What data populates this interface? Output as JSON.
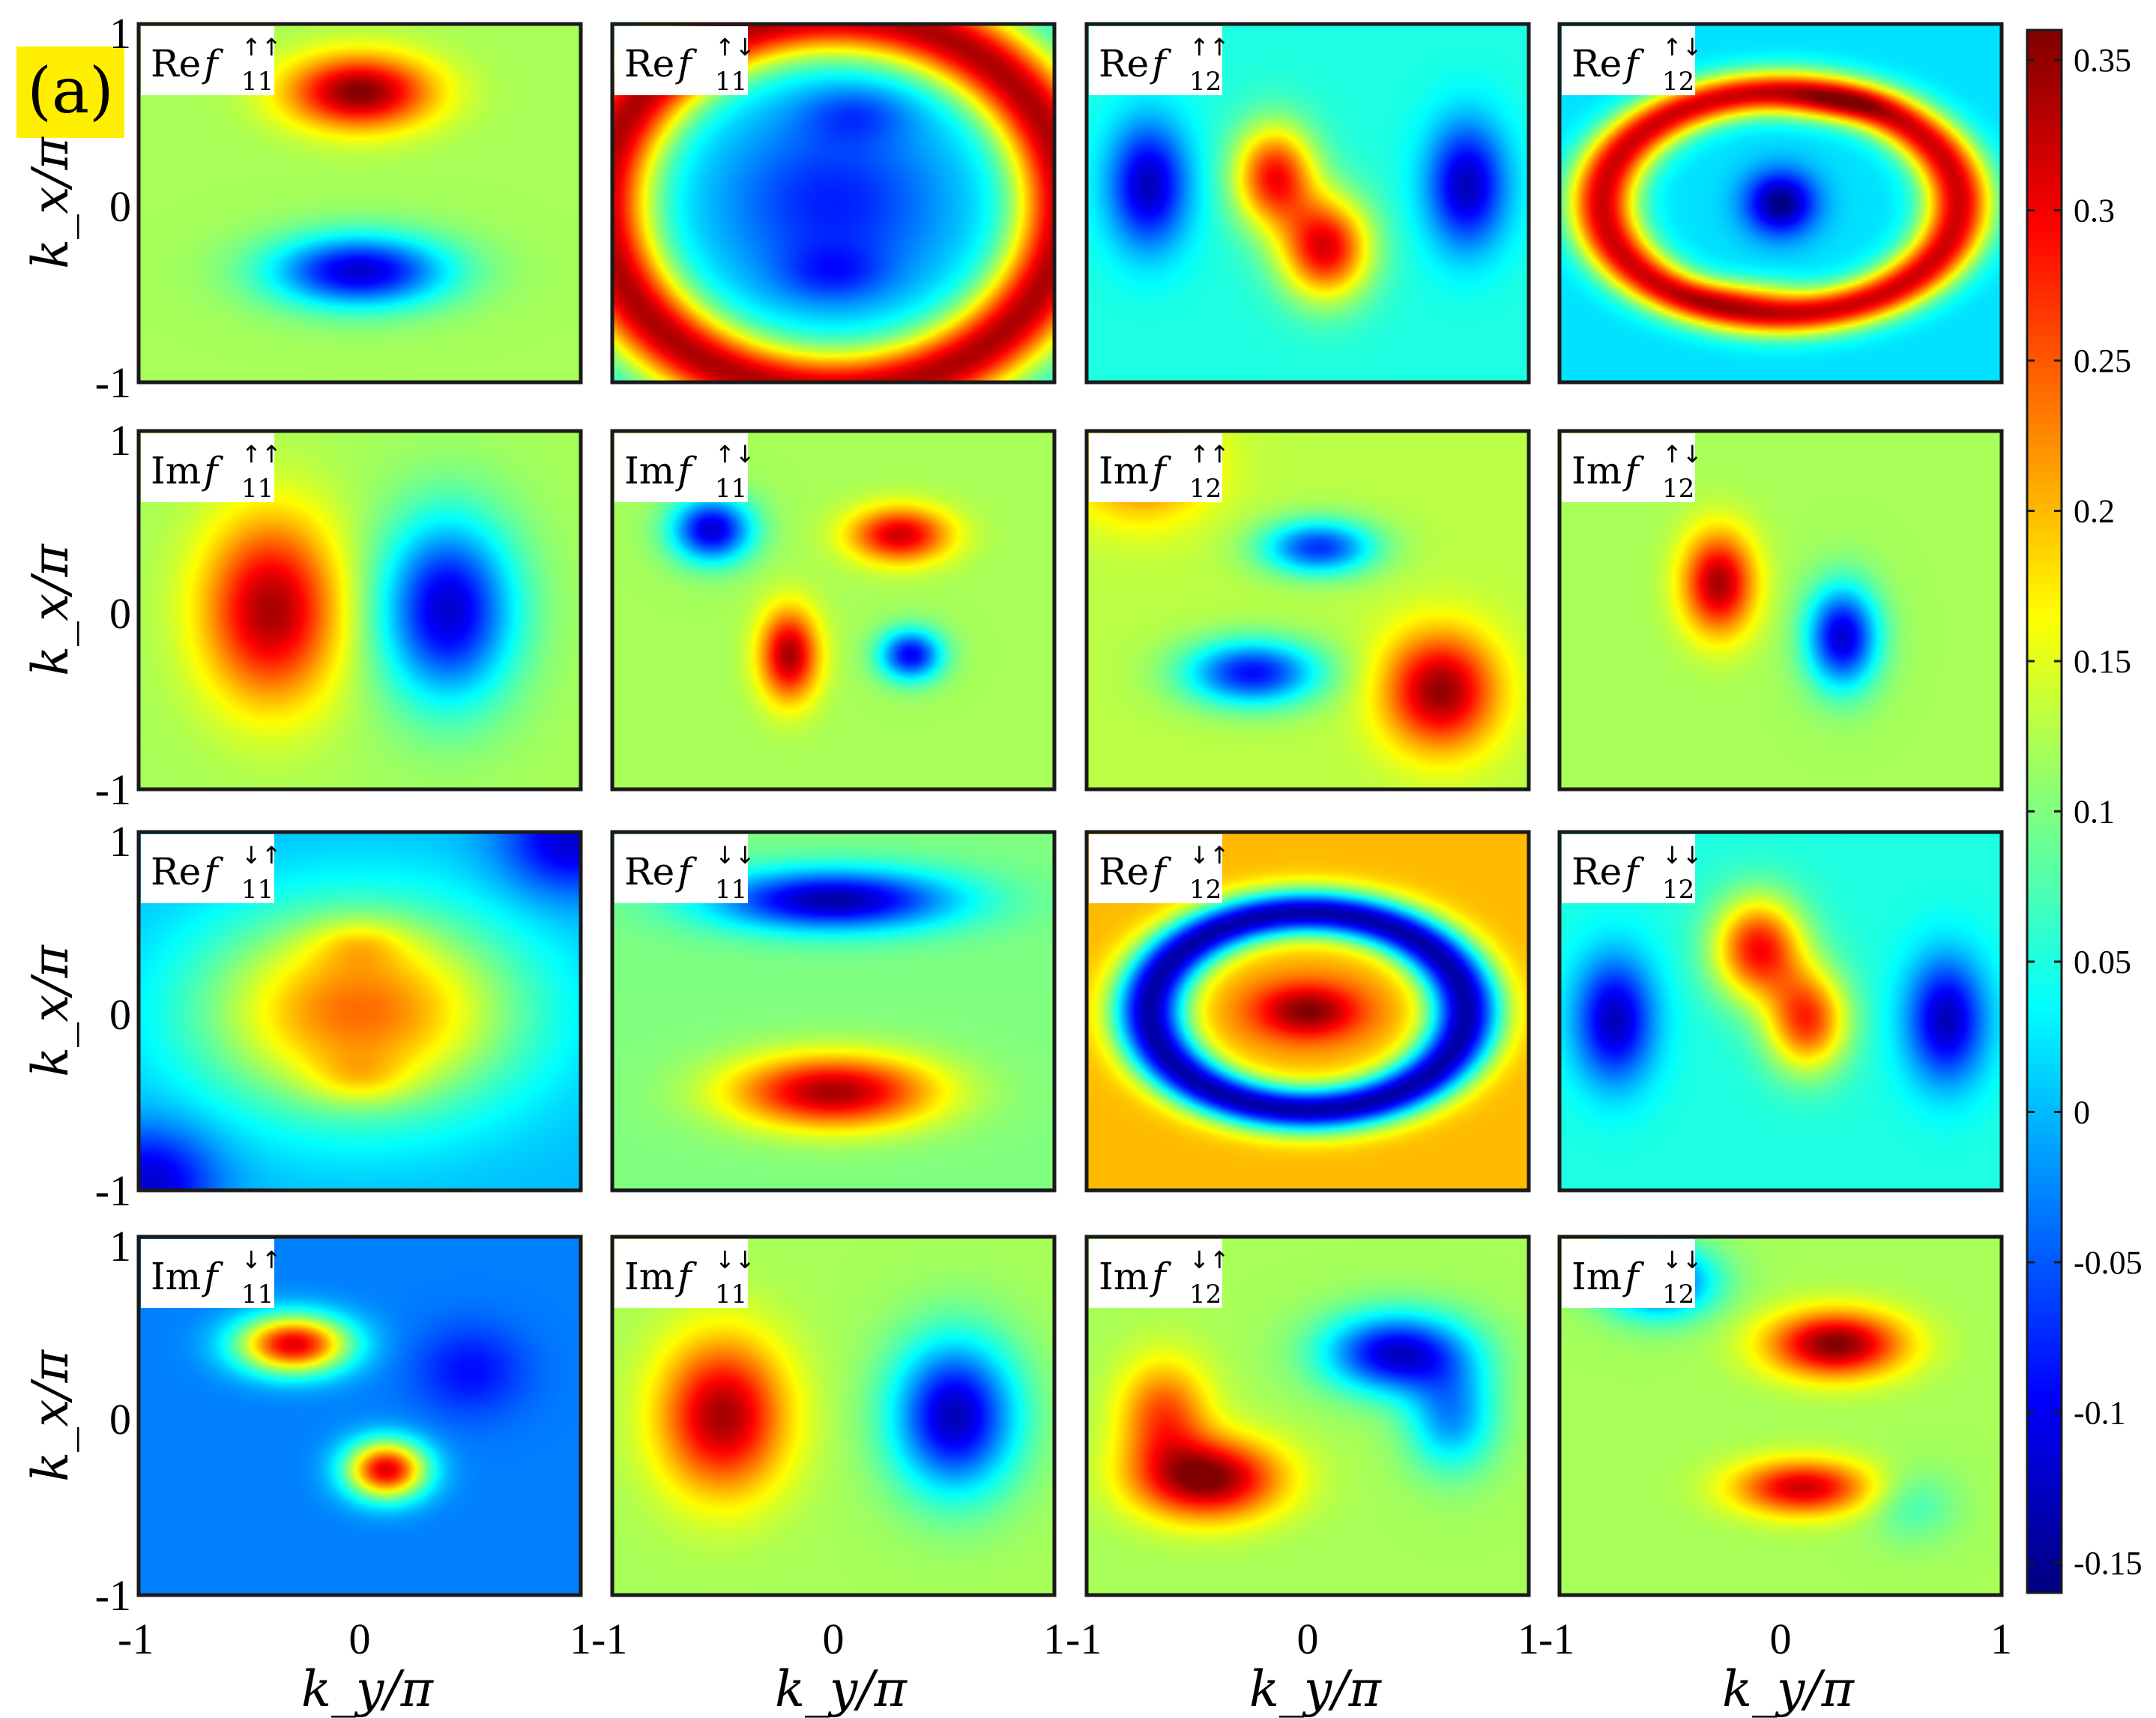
{
  "figure_label": "(a)",
  "label_bg_color": "#ffee00",
  "chart_data": {
    "type": "heatmap",
    "layout": {
      "rows": 4,
      "cols": 4
    },
    "xlabel": "k_y/π",
    "ylabel": "k_x/π",
    "xlim": [
      -1,
      1
    ],
    "ylim": [
      -1,
      1
    ],
    "x_tick_labels": [
      "-1",
      "0",
      "1"
    ],
    "y_tick_labels": [
      "1",
      "0",
      "-1"
    ],
    "colorbar": {
      "range": [
        -0.16,
        0.36
      ],
      "ticks": [
        0.35,
        0.3,
        0.25,
        0.2,
        0.15,
        0.1,
        0.05,
        0,
        -0.05,
        -0.1,
        -0.15
      ],
      "tick_labels": [
        "0.35",
        "0.3",
        "0.25",
        "0.2",
        "0.15",
        "0.1",
        "0.05",
        "0",
        "-0.05",
        "-0.1",
        "-0.15"
      ],
      "colormap": "jet"
    },
    "background_value": 0.1,
    "panels": [
      {
        "name": "Ref11uu",
        "part": "Re",
        "sub": "11",
        "sup": "↑↑",
        "bg": 0.12,
        "blobs": [
          {
            "y": 0.62,
            "x": 0.0,
            "sy": 0.2,
            "sx": 0.32,
            "a": 0.24
          },
          {
            "y": -0.38,
            "x": 0.0,
            "sy": 0.2,
            "sx": 0.4,
            "a": -0.24
          }
        ]
      },
      {
        "name": "Ref11ud",
        "part": "Re",
        "sub": "11",
        "sup": "↑↓",
        "bg": 0.04,
        "rings": [
          {
            "r": 1.05,
            "w": 0.22,
            "a": 0.3,
            "ex": 1.0
          }
        ],
        "blobs": [
          {
            "y": 0.0,
            "x": 0.0,
            "sy": 0.55,
            "sx": 0.55,
            "a": -0.12
          },
          {
            "y": 0.5,
            "x": 0.1,
            "sy": 0.16,
            "sx": 0.25,
            "a": -0.06
          },
          {
            "y": -0.4,
            "x": 0.0,
            "sy": 0.16,
            "sx": 0.25,
            "a": -0.06
          }
        ]
      },
      {
        "name": "Ref12uu",
        "part": "Re",
        "sub": "12",
        "sup": "↑↑",
        "bg": 0.05,
        "blobs": [
          {
            "y": 0.15,
            "x": -0.15,
            "sy": 0.28,
            "sx": 0.18,
            "a": 0.24
          },
          {
            "y": -0.25,
            "x": 0.08,
            "sy": 0.28,
            "sx": 0.2,
            "a": 0.26
          },
          {
            "y": 0.1,
            "x": -0.72,
            "sy": 0.35,
            "sx": 0.18,
            "a": -0.18
          },
          {
            "y": 0.1,
            "x": 0.72,
            "sy": 0.35,
            "sx": 0.18,
            "a": -0.18
          }
        ]
      },
      {
        "name": "Ref12ud",
        "part": "Re",
        "sub": "12",
        "sup": "↑↓",
        "bg": 0.02,
        "rings": [
          {
            "r": 0.62,
            "w": 0.12,
            "a": 0.3,
            "ex": 1.3
          }
        ],
        "blobs": [
          {
            "y": 0.0,
            "x": 0.0,
            "sy": 0.18,
            "sx": 0.16,
            "a": -0.18
          },
          {
            "y": 0.55,
            "x": 0.25,
            "sy": 0.1,
            "sx": 0.25,
            "a": 0.06
          },
          {
            "y": -0.5,
            "x": -0.15,
            "sy": 0.1,
            "sx": 0.25,
            "a": 0.06
          }
        ]
      },
      {
        "name": "Imf11uu",
        "part": "Im",
        "sub": "11",
        "sup": "↑↑",
        "bg": 0.12,
        "blobs": [
          {
            "y": 0.0,
            "x": -0.4,
            "sy": 0.5,
            "sx": 0.3,
            "a": 0.22
          },
          {
            "y": 0.0,
            "x": 0.4,
            "sy": 0.5,
            "sx": 0.3,
            "a": -0.24
          }
        ]
      },
      {
        "name": "Imf11ud",
        "part": "Im",
        "sub": "11",
        "sup": "↑↓",
        "bg": 0.12,
        "blobs": [
          {
            "y": 0.45,
            "x": -0.55,
            "sy": 0.18,
            "sx": 0.18,
            "a": -0.24
          },
          {
            "y": 0.42,
            "x": 0.3,
            "sy": 0.15,
            "sx": 0.22,
            "a": 0.2
          },
          {
            "y": -0.25,
            "x": -0.2,
            "sy": 0.25,
            "sx": 0.13,
            "a": 0.22
          },
          {
            "y": -0.25,
            "x": 0.35,
            "sy": 0.14,
            "sx": 0.14,
            "a": -0.22
          }
        ]
      },
      {
        "name": "Imf12uu",
        "part": "Im",
        "sub": "12",
        "sup": "↑↑",
        "bg": 0.13,
        "blobs": [
          {
            "y": 0.8,
            "x": -0.75,
            "sy": 0.3,
            "sx": 0.3,
            "a": 0.12
          },
          {
            "y": 0.35,
            "x": 0.05,
            "sy": 0.15,
            "sx": 0.25,
            "a": -0.2
          },
          {
            "y": -0.35,
            "x": -0.25,
            "sy": 0.18,
            "sx": 0.3,
            "a": -0.22
          },
          {
            "y": -0.45,
            "x": 0.6,
            "sy": 0.32,
            "sx": 0.25,
            "a": 0.22
          }
        ]
      },
      {
        "name": "Imf12ud",
        "part": "Im",
        "sub": "12",
        "sup": "↑↓",
        "bg": 0.12,
        "blobs": [
          {
            "y": 0.15,
            "x": -0.28,
            "sy": 0.28,
            "sx": 0.16,
            "a": 0.22
          },
          {
            "y": -0.15,
            "x": 0.28,
            "sy": 0.28,
            "sx": 0.16,
            "a": -0.24
          }
        ]
      },
      {
        "name": "Ref11du",
        "part": "Re",
        "sub": "11",
        "sup": "↓↑",
        "bg": 0.0,
        "blobs": [
          {
            "y": 0.0,
            "x": 0.0,
            "sy": 0.55,
            "sx": 0.7,
            "a": 0.24
          },
          {
            "y": 0.38,
            "x": 0.0,
            "sy": 0.14,
            "sx": 0.22,
            "a": 0.05
          },
          {
            "y": -0.38,
            "x": 0.0,
            "sy": 0.14,
            "sx": 0.22,
            "a": 0.05
          },
          {
            "y": -0.95,
            "x": -0.95,
            "sy": 0.3,
            "sx": 0.3,
            "a": -0.12
          },
          {
            "y": 0.95,
            "x": 0.95,
            "sy": 0.3,
            "sx": 0.3,
            "a": -0.12
          }
        ]
      },
      {
        "name": "Ref11dd",
        "part": "Re",
        "sub": "11",
        "sup": "↓↓",
        "bg": 0.1,
        "blobs": [
          {
            "y": 0.62,
            "x": 0.0,
            "sy": 0.17,
            "sx": 0.55,
            "a": -0.24
          },
          {
            "y": -0.45,
            "x": 0.0,
            "sy": 0.2,
            "sx": 0.45,
            "a": 0.24
          }
        ]
      },
      {
        "name": "Ref12du",
        "part": "Re",
        "sub": "12",
        "sup": "↓↑",
        "bg": 0.2,
        "rings": [
          {
            "r": 0.55,
            "w": 0.13,
            "a": -0.34,
            "ex": 1.3
          }
        ],
        "blobs": [
          {
            "y": 0.0,
            "x": 0.0,
            "sy": 0.16,
            "sx": 0.25,
            "a": 0.16
          }
        ]
      },
      {
        "name": "Ref12dd",
        "part": "Re",
        "sub": "12",
        "sup": "↓↓",
        "bg": 0.05,
        "blobs": [
          {
            "y": 0.35,
            "x": -0.1,
            "sy": 0.28,
            "sx": 0.2,
            "a": 0.24
          },
          {
            "y": -0.05,
            "x": 0.12,
            "sy": 0.28,
            "sx": 0.18,
            "a": 0.22
          },
          {
            "y": -0.05,
            "x": -0.75,
            "sy": 0.35,
            "sx": 0.18,
            "a": -0.18
          },
          {
            "y": -0.05,
            "x": 0.75,
            "sy": 0.35,
            "sx": 0.18,
            "a": -0.18
          }
        ]
      },
      {
        "name": "Imf11du",
        "part": "Im",
        "sub": "11",
        "sup": "↓↑",
        "bg": -0.03,
        "blobs": [
          {
            "y": 0.4,
            "x": -0.3,
            "sy": 0.16,
            "sx": 0.25,
            "a": 0.34
          },
          {
            "y": -0.3,
            "x": 0.12,
            "sy": 0.16,
            "sx": 0.18,
            "a": 0.34
          },
          {
            "y": 0.25,
            "x": 0.5,
            "sy": 0.25,
            "sx": 0.25,
            "a": -0.06
          }
        ]
      },
      {
        "name": "Imf11dd",
        "part": "Im",
        "sub": "11",
        "sup": "↓↓",
        "bg": 0.12,
        "blobs": [
          {
            "y": 0.0,
            "x": -0.5,
            "sy": 0.42,
            "sx": 0.28,
            "a": 0.22
          },
          {
            "y": 0.0,
            "x": 0.55,
            "sy": 0.42,
            "sx": 0.28,
            "a": -0.25
          }
        ]
      },
      {
        "name": "Imf12du",
        "part": "Im",
        "sub": "12",
        "sup": "↓↑",
        "bg": 0.12,
        "blobs": [
          {
            "y": -0.35,
            "x": -0.45,
            "sy": 0.22,
            "sx": 0.32,
            "a": 0.24
          },
          {
            "y": 0.0,
            "x": -0.65,
            "sy": 0.3,
            "sx": 0.2,
            "a": 0.14
          },
          {
            "y": 0.35,
            "x": 0.4,
            "sy": 0.22,
            "sx": 0.32,
            "a": -0.24
          },
          {
            "y": 0.0,
            "x": 0.65,
            "sy": 0.3,
            "sx": 0.2,
            "a": -0.14
          }
        ]
      },
      {
        "name": "Imf12dd",
        "part": "Im",
        "sub": "12",
        "sup": "↓↓",
        "bg": 0.12,
        "blobs": [
          {
            "y": 0.4,
            "x": 0.25,
            "sy": 0.18,
            "sx": 0.3,
            "a": 0.24
          },
          {
            "y": -0.4,
            "x": 0.1,
            "sy": 0.15,
            "sx": 0.3,
            "a": 0.2
          },
          {
            "y": 0.75,
            "x": -0.55,
            "sy": 0.2,
            "sx": 0.25,
            "a": -0.2
          },
          {
            "y": -0.5,
            "x": 0.6,
            "sy": 0.2,
            "sx": 0.2,
            "a": -0.05
          }
        ]
      }
    ]
  }
}
